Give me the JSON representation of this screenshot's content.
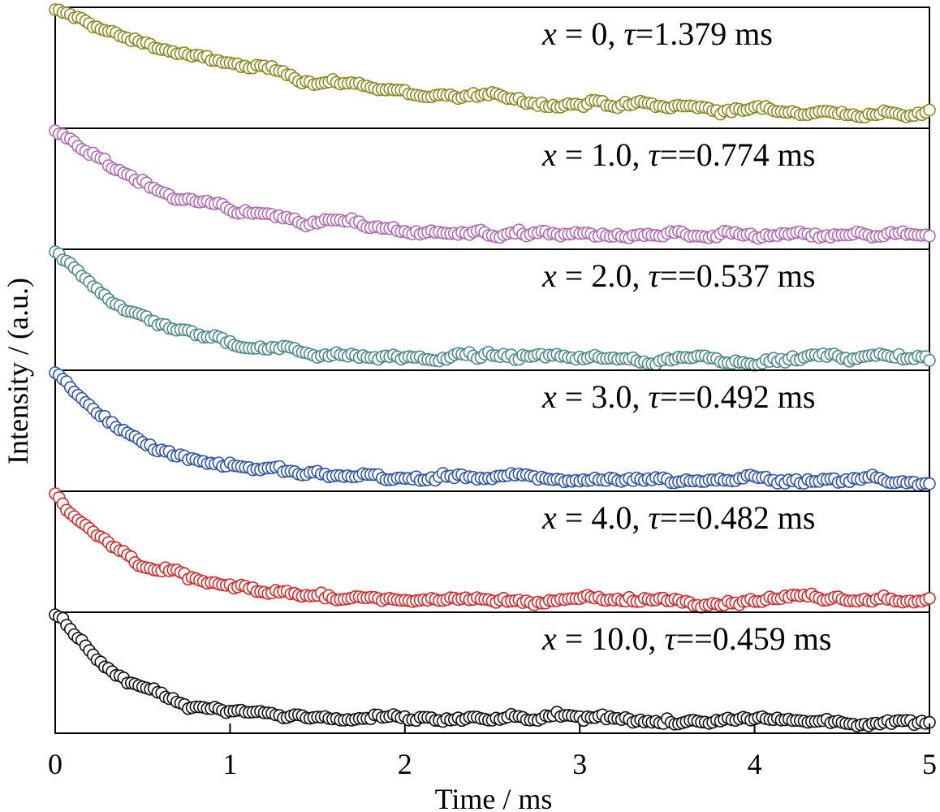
{
  "chart_data": {
    "type": "scatter",
    "xlabel": "Time / ms",
    "ylabel": "Intensity / (a.u.)",
    "xlim": [
      0,
      5
    ],
    "xticks": [
      "0",
      "1",
      "2",
      "3",
      "4",
      "5"
    ],
    "ylim": [
      0,
      1
    ],
    "grid": false,
    "series": [
      {
        "label_var": "x",
        "label_rest": " = 0, ",
        "label_tau": "τ",
        "label_tail": "=1.379 ms",
        "tau": 1.379,
        "color": "#8b8b25"
      },
      {
        "label_var": "x",
        "label_rest": " = 1.0, ",
        "label_tau": "τ",
        "label_tail": "==0.774 ms",
        "tau": 0.774,
        "color": "#b36ab3"
      },
      {
        "label_var": "x",
        "label_rest": " = 2.0, ",
        "label_tau": "τ",
        "label_tail": "==0.537 ms",
        "tau": 0.537,
        "color": "#4d8a8a"
      },
      {
        "label_var": "x",
        "label_rest": " = 3.0, ",
        "label_tau": "τ",
        "label_tail": "==0.492 ms",
        "tau": 0.492,
        "color": "#2f55a8"
      },
      {
        "label_var": "x",
        "label_rest": " = 4.0, ",
        "label_tau": "τ",
        "label_tail": "==0.482 ms",
        "tau": 0.482,
        "color": "#d42a2a"
      },
      {
        "label_var": "x",
        "label_rest": " = 10.0, ",
        "label_tau": "τ",
        "label_tail": "==0.459 ms",
        "tau": 0.459,
        "color": "#111111"
      }
    ]
  }
}
